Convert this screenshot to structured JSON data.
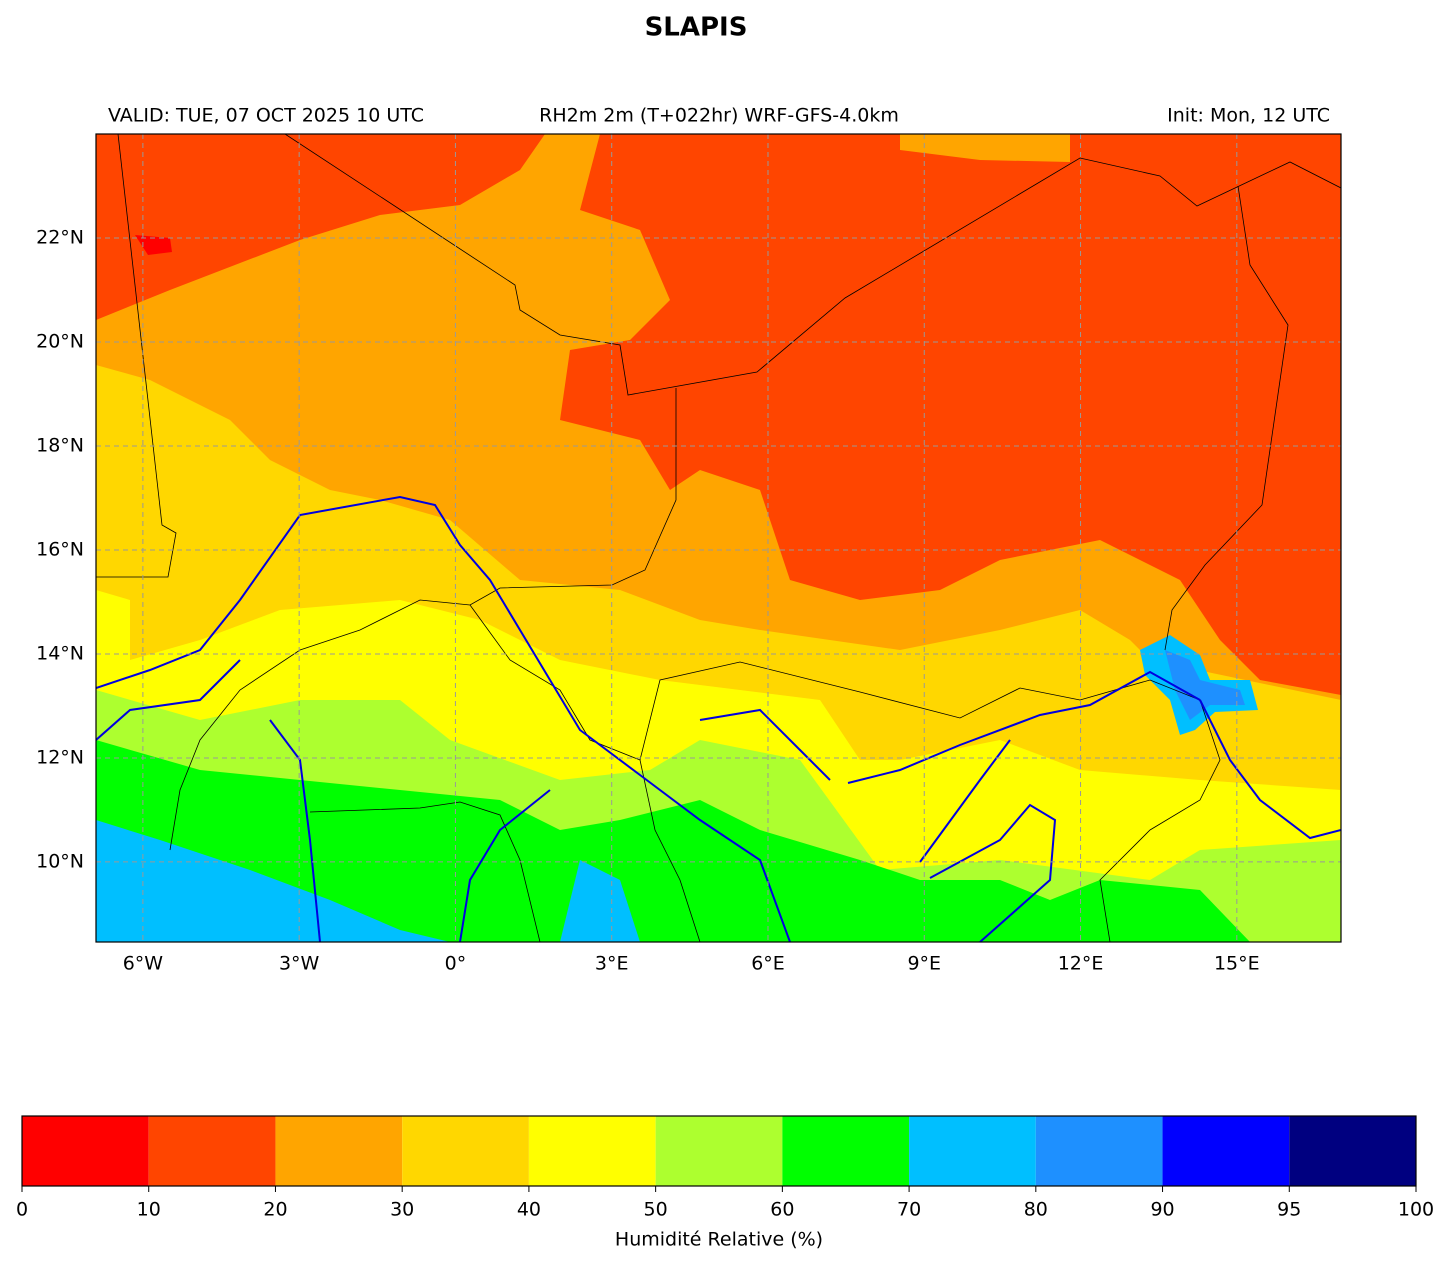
{
  "title": "SLAPIS",
  "subtitle_left": "VALID: TUE, 07 OCT 2025 10 UTC",
  "subtitle_center": "RH2m 2m (T+022hr) WRF-GFS-4.0km",
  "subtitle_right": "Init: Mon, 12 UTC",
  "map": {
    "xlim": [
      -6.9,
      17.0
    ],
    "ylim": [
      8.46,
      24.0
    ],
    "grid": true,
    "xticks": [
      {
        "value": -6,
        "label": "6°W"
      },
      {
        "value": -3,
        "label": "3°W"
      },
      {
        "value": 0,
        "label": "0°"
      },
      {
        "value": 3,
        "label": "3°E"
      },
      {
        "value": 6,
        "label": "6°E"
      },
      {
        "value": 9,
        "label": "9°E"
      },
      {
        "value": 12,
        "label": "12°E"
      },
      {
        "value": 15,
        "label": "15°E"
      }
    ],
    "yticks": [
      {
        "value": 10,
        "label": "10°N"
      },
      {
        "value": 12,
        "label": "12°N"
      },
      {
        "value": 14,
        "label": "14°N"
      },
      {
        "value": 16,
        "label": "16°N"
      },
      {
        "value": 18,
        "label": "18°N"
      },
      {
        "value": 20,
        "label": "20°N"
      },
      {
        "value": 22,
        "label": "22°N"
      }
    ]
  },
  "colorbar": {
    "label": "Humidité Relative (%)",
    "bounds": [
      0,
      10,
      20,
      30,
      40,
      50,
      60,
      70,
      80,
      90,
      95,
      100
    ],
    "colors": [
      "#ff0000",
      "#ff4500",
      "#ffa500",
      "#ffd700",
      "#ffff00",
      "#adff2f",
      "#00ff00",
      "#00bfff",
      "#1e90ff",
      "#0000ff",
      "#000080"
    ]
  }
}
